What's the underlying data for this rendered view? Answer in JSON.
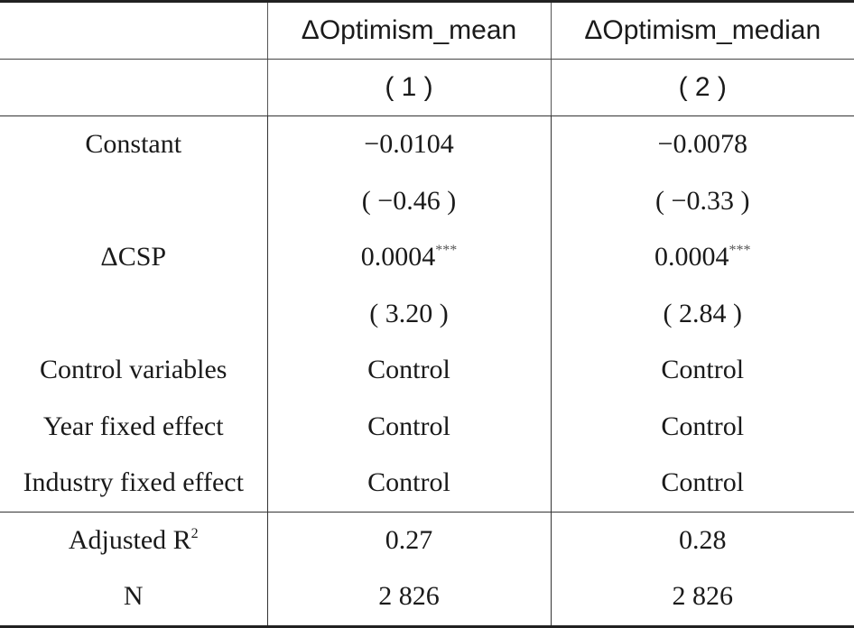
{
  "header": {
    "columns": [
      "",
      "ΔOptimism_mean",
      "ΔOptimism_median"
    ],
    "numbers": [
      "",
      "( 1 )",
      "( 2 )"
    ]
  },
  "rows": [
    {
      "label": "Constant",
      "c1": "−0.0104",
      "c1_sup": "",
      "c2": "−0.0078",
      "c2_sup": ""
    },
    {
      "label": "",
      "c1": "( −0.46 )",
      "c1_sup": "",
      "c2": "( −0.33 )",
      "c2_sup": ""
    },
    {
      "label": "ΔCSP",
      "c1": "0.0004",
      "c1_sup": "***",
      "c2": "0.0004",
      "c2_sup": "***"
    },
    {
      "label": "",
      "c1": "( 3.20 )",
      "c1_sup": "",
      "c2": "( 2.84 )",
      "c2_sup": ""
    },
    {
      "label": "Control variables",
      "c1": "Control",
      "c1_sup": "",
      "c2": "Control",
      "c2_sup": ""
    },
    {
      "label": "Year fixed effect",
      "c1": "Control",
      "c1_sup": "",
      "c2": "Control",
      "c2_sup": ""
    },
    {
      "label": "Industry fixed effect",
      "c1": "Control",
      "c1_sup": "",
      "c2": "Control",
      "c2_sup": ""
    }
  ],
  "stats": [
    {
      "label": "Adjusted R",
      "label_sup": "2",
      "c1": "0.27",
      "c2": "0.28"
    },
    {
      "label": "N",
      "label_sup": "",
      "c1": "2 826",
      "c2": "2 826"
    }
  ]
}
